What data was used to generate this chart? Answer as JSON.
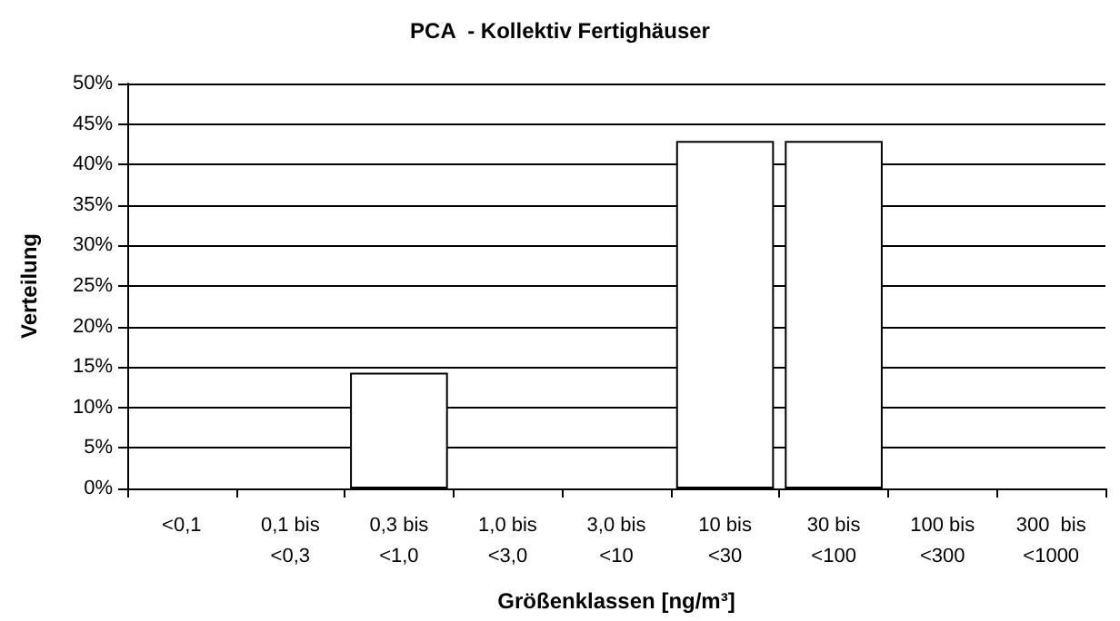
{
  "chart_data": {
    "type": "bar",
    "title": "PCA  - Kollektiv Fertighäuser",
    "xlabel": "Größenklassen [ng/m³]",
    "ylabel": "Verteilung",
    "categories": [
      "<0,1",
      "0,1 bis\n<0,3",
      "0,3 bis\n<1,0",
      "1,0 bis\n<3,0",
      "3,0 bis\n<10",
      "10 bis\n<30",
      "30 bis\n<100",
      "100 bis\n<300",
      "300  bis\n<1000"
    ],
    "values": [
      0,
      0,
      14.3,
      0,
      0,
      42.9,
      42.9,
      0,
      0
    ],
    "color": "#ffffff",
    "ylim": [
      0,
      50
    ],
    "yticks": [
      {
        "value": 0,
        "label": "0%"
      },
      {
        "value": 5,
        "label": "5%"
      },
      {
        "value": 10,
        "label": "10%"
      },
      {
        "value": 15,
        "label": "15%"
      },
      {
        "value": 20,
        "label": "20%"
      },
      {
        "value": 25,
        "label": "25%"
      },
      {
        "value": 30,
        "label": "30%"
      },
      {
        "value": 35,
        "label": "35%"
      },
      {
        "value": 40,
        "label": "40%"
      },
      {
        "value": 45,
        "label": "45%"
      },
      {
        "value": 50,
        "label": "50%"
      }
    ],
    "grid": "y"
  }
}
